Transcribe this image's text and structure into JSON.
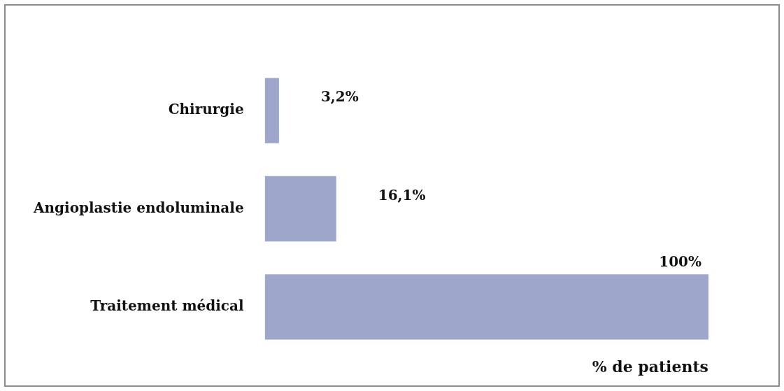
{
  "chart_data": {
    "type": "bar",
    "orientation": "horizontal",
    "categories": [
      "Chirurgie",
      "Angioplastie endoluminale",
      "Traitement médical"
    ],
    "values": [
      3.2,
      16.1,
      100
    ],
    "color": "#9ea6cc",
    "value_labels": [
      "3,2%",
      "16,1%",
      "100%"
    ],
    "xlabel": "% de patients",
    "xlim": [
      0,
      100
    ],
    "tick_labels": "y",
    "grid": false,
    "legend": false
  }
}
